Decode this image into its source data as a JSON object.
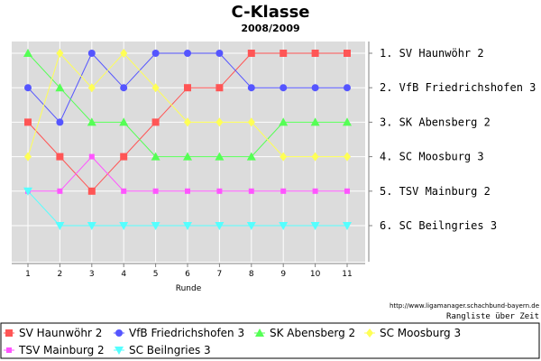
{
  "chart_data": {
    "type": "line",
    "title": "C-Klasse",
    "subtitle": "2008/2009",
    "xlabel": "Runde",
    "x": [
      1,
      2,
      3,
      4,
      5,
      6,
      7,
      8,
      9,
      10,
      11
    ],
    "ylim": [
      1,
      6
    ],
    "y_inverted": true,
    "grid": true,
    "rank_labels": [
      "1. SV Haunwöhr 2",
      "2. VfB Friedrichshofen 3",
      "3. SK Abensberg 2",
      "4. SC Moosburg 3",
      "5. TSV Mainburg 2",
      "6. SC Beilngries 3"
    ],
    "series": [
      {
        "name": "SV Haunwöhr 2",
        "color": "#ff5555",
        "marker": "square",
        "values": [
          3,
          4,
          5,
          4,
          3,
          2,
          2,
          1,
          1,
          1,
          1
        ]
      },
      {
        "name": "VfB Friedrichshofen 3",
        "color": "#5555ff",
        "marker": "circle",
        "values": [
          2,
          3,
          1,
          2,
          1,
          1,
          1,
          2,
          2,
          2,
          2
        ]
      },
      {
        "name": "SK Abensberg 2",
        "color": "#55ff55",
        "marker": "triangle-up",
        "values": [
          1,
          2,
          3,
          3,
          4,
          4,
          4,
          4,
          3,
          3,
          3
        ]
      },
      {
        "name": "SC Moosburg 3",
        "color": "#ffff55",
        "marker": "diamond",
        "values": [
          4,
          1,
          2,
          1,
          2,
          3,
          3,
          3,
          4,
          4,
          4
        ]
      },
      {
        "name": "TSV Mainburg 2",
        "color": "#ff55ff",
        "marker": "square-small",
        "values": [
          5,
          5,
          4,
          5,
          5,
          5,
          5,
          5,
          5,
          5,
          5
        ]
      },
      {
        "name": "SC Beilngries 3",
        "color": "#55ffff",
        "marker": "triangle-down",
        "values": [
          5,
          6,
          6,
          6,
          6,
          6,
          6,
          6,
          6,
          6,
          6
        ]
      }
    ],
    "legend_position": "bottom"
  },
  "footer": {
    "url": "http://www.ligamanager.schachbund-bayern.de",
    "caption": "Rangliste über Zeit"
  },
  "colors": {
    "plot_background": "#dcdcdc",
    "grid": "#ffffff"
  }
}
